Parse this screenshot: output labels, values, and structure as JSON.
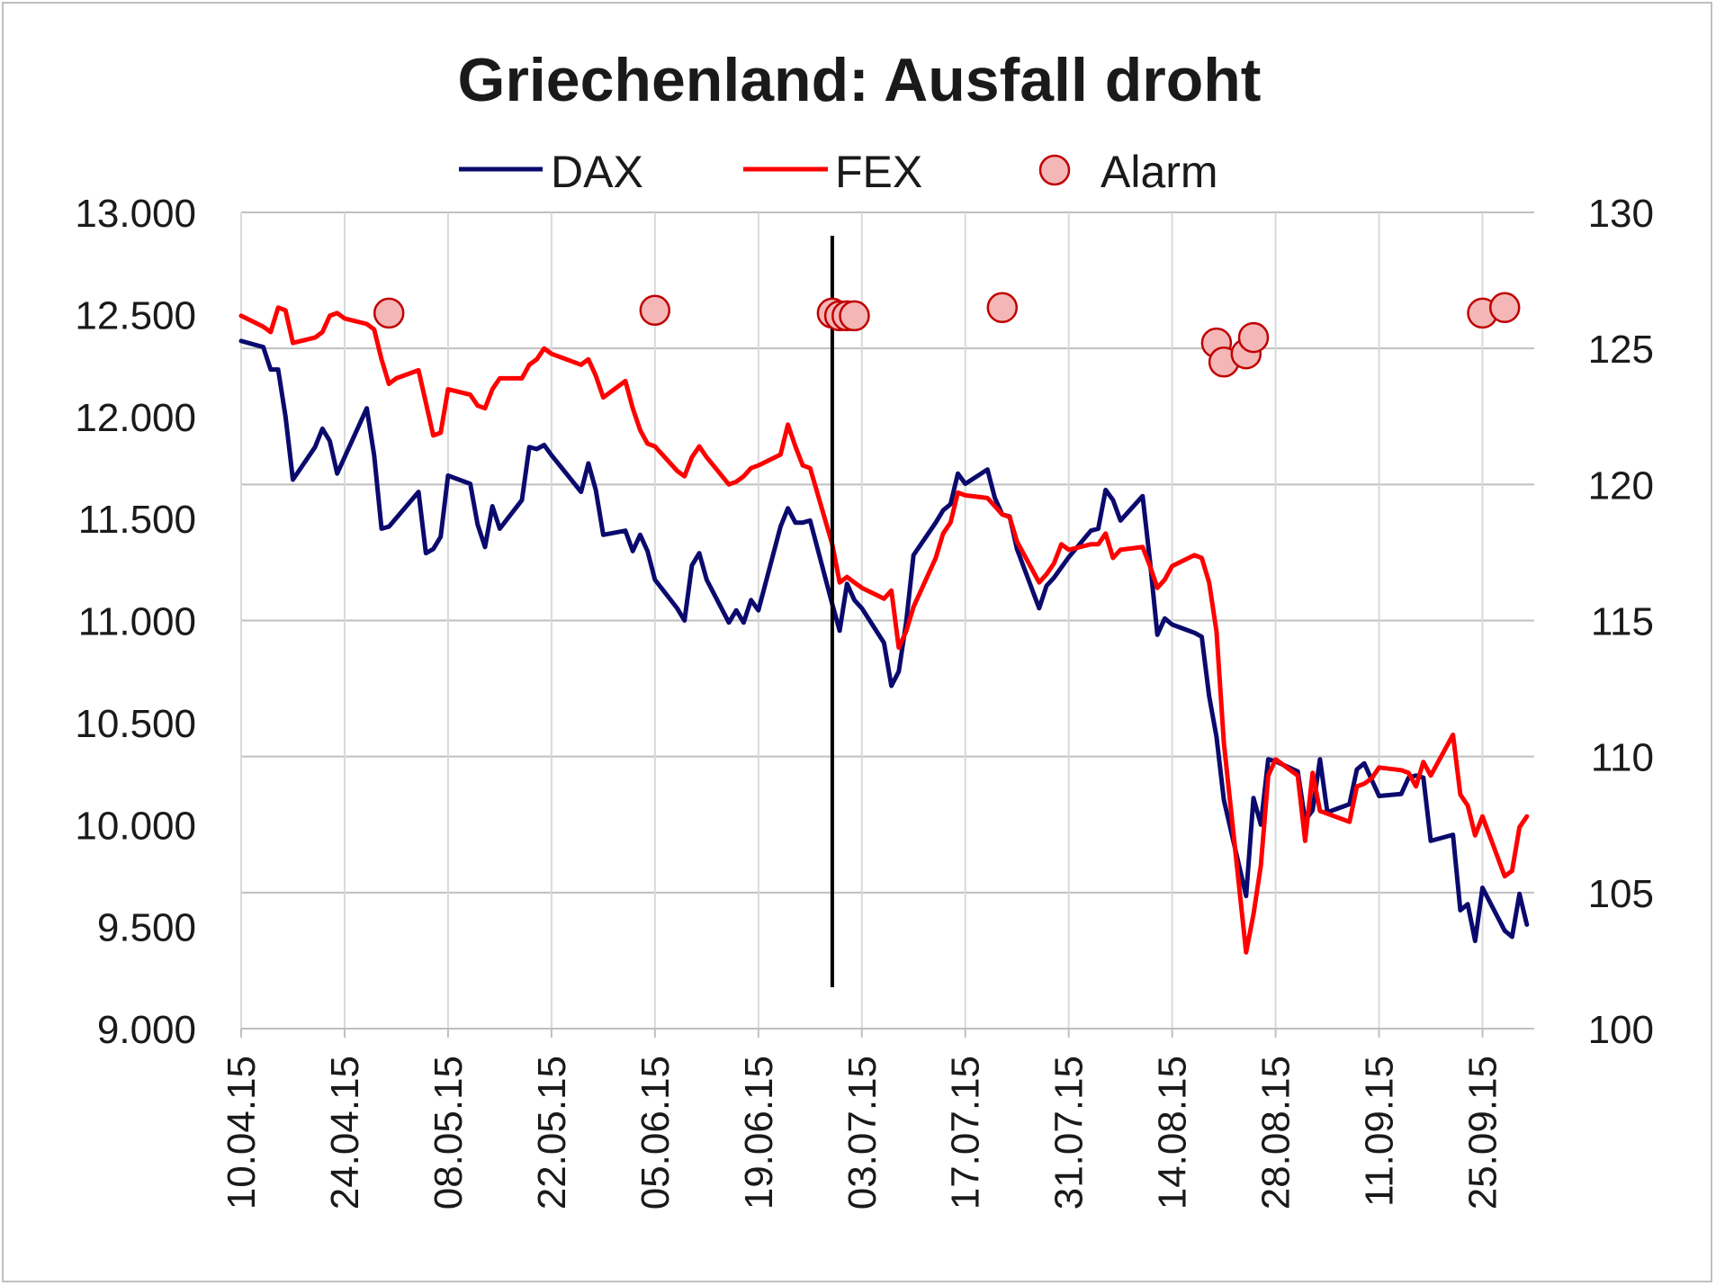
{
  "chart_data": {
    "type": "line",
    "title": "Griechenland: Ausfall droht",
    "legend": {
      "position": "top",
      "entries": [
        {
          "label": "DAX",
          "style": "line",
          "color": "#0a0a6e"
        },
        {
          "label": "FEX",
          "style": "line",
          "color": "#ff0000"
        },
        {
          "label": "Alarm",
          "style": "marker",
          "color": "#f4b6b6"
        }
      ]
    },
    "x_start": "10.04.15",
    "x_end": "02.10.15",
    "x_ticks": [
      "10.04.15",
      "24.04.15",
      "08.05.15",
      "22.05.15",
      "05.06.15",
      "19.06.15",
      "03.07.15",
      "17.07.15",
      "31.07.15",
      "14.08.15",
      "28.08.15",
      "11.09.15",
      "25.09.15"
    ],
    "y_left": {
      "ticks": [
        "13.000",
        "12.500",
        "12.000",
        "11.500",
        "11.000",
        "10.500",
        "10.000",
        "9.500",
        "9.000"
      ],
      "range": [
        9000,
        13000
      ]
    },
    "y_right": {
      "ticks": [
        "130",
        "125",
        "120",
        "115",
        "110",
        "105",
        "100"
      ],
      "range": [
        100,
        130
      ]
    },
    "grid": "horizontal and vertical",
    "vertical_marker_date": "29.06.15",
    "series": [
      {
        "name": "DAX",
        "axis": "left",
        "color": "#0a0a6e",
        "points": [
          [
            "10.04.15",
            12370
          ],
          [
            "13.04.15",
            12340
          ],
          [
            "14.04.15",
            12230
          ],
          [
            "15.04.15",
            12230
          ],
          [
            "16.04.15",
            12000
          ],
          [
            "17.04.15",
            11690
          ],
          [
            "20.04.15",
            11850
          ],
          [
            "21.04.15",
            11940
          ],
          [
            "22.04.15",
            11880
          ],
          [
            "23.04.15",
            11720
          ],
          [
            "27.04.15",
            12040
          ],
          [
            "28.04.15",
            11810
          ],
          [
            "29.04.15",
            11450
          ],
          [
            "30.04.15",
            11460
          ],
          [
            "04.05.15",
            11630
          ],
          [
            "05.05.15",
            11330
          ],
          [
            "06.05.15",
            11350
          ],
          [
            "07.05.15",
            11410
          ],
          [
            "08.05.15",
            11710
          ],
          [
            "11.05.15",
            11670
          ],
          [
            "12.05.15",
            11470
          ],
          [
            "13.05.15",
            11360
          ],
          [
            "14.05.15",
            11560
          ],
          [
            "15.05.15",
            11450
          ],
          [
            "18.05.15",
            11590
          ],
          [
            "19.05.15",
            11850
          ],
          [
            "20.05.15",
            11840
          ],
          [
            "21.05.15",
            11860
          ],
          [
            "22.05.15",
            11810
          ],
          [
            "26.05.15",
            11630
          ],
          [
            "27.05.15",
            11770
          ],
          [
            "28.05.15",
            11640
          ],
          [
            "29.05.15",
            11420
          ],
          [
            "01.06.15",
            11440
          ],
          [
            "02.06.15",
            11340
          ],
          [
            "03.06.15",
            11420
          ],
          [
            "04.06.15",
            11340
          ],
          [
            "05.06.15",
            11200
          ],
          [
            "08.06.15",
            11060
          ],
          [
            "09.06.15",
            11000
          ],
          [
            "10.06.15",
            11270
          ],
          [
            "11.06.15",
            11330
          ],
          [
            "12.06.15",
            11200
          ],
          [
            "15.06.15",
            10990
          ],
          [
            "16.06.15",
            11050
          ],
          [
            "17.06.15",
            10990
          ],
          [
            "18.06.15",
            11100
          ],
          [
            "19.06.15",
            11050
          ],
          [
            "22.06.15",
            11460
          ],
          [
            "23.06.15",
            11550
          ],
          [
            "24.06.15",
            11480
          ],
          [
            "25.06.15",
            11480
          ],
          [
            "26.06.15",
            11490
          ],
          [
            "29.06.15",
            11080
          ],
          [
            "30.06.15",
            10950
          ],
          [
            "01.07.15",
            11180
          ],
          [
            "02.07.15",
            11100
          ],
          [
            "03.07.15",
            11060
          ],
          [
            "06.07.15",
            10890
          ],
          [
            "07.07.15",
            10680
          ],
          [
            "08.07.15",
            10750
          ],
          [
            "09.07.15",
            10990
          ],
          [
            "10.07.15",
            11320
          ],
          [
            "13.07.15",
            11480
          ],
          [
            "14.07.15",
            11540
          ],
          [
            "15.07.15",
            11570
          ],
          [
            "16.07.15",
            11720
          ],
          [
            "17.07.15",
            11670
          ],
          [
            "20.07.15",
            11740
          ],
          [
            "21.07.15",
            11600
          ],
          [
            "22.07.15",
            11520
          ],
          [
            "23.07.15",
            11510
          ],
          [
            "24.07.15",
            11350
          ],
          [
            "27.07.15",
            11060
          ],
          [
            "28.07.15",
            11170
          ],
          [
            "29.07.15",
            11210
          ],
          [
            "30.07.15",
            11260
          ],
          [
            "31.07.15",
            11310
          ],
          [
            "03.08.15",
            11440
          ],
          [
            "04.08.15",
            11450
          ],
          [
            "05.08.15",
            11640
          ],
          [
            "06.08.15",
            11590
          ],
          [
            "07.08.15",
            11490
          ],
          [
            "10.08.15",
            11610
          ],
          [
            "11.08.15",
            11290
          ],
          [
            "12.08.15",
            10930
          ],
          [
            "13.08.15",
            11010
          ],
          [
            "14.08.15",
            10980
          ],
          [
            "17.08.15",
            10940
          ],
          [
            "18.08.15",
            10920
          ],
          [
            "19.08.15",
            10630
          ],
          [
            "20.08.15",
            10430
          ],
          [
            "21.08.15",
            10120
          ],
          [
            "24.08.15",
            9650
          ],
          [
            "25.08.15",
            10130
          ],
          [
            "26.08.15",
            10000
          ],
          [
            "27.08.15",
            10320
          ],
          [
            "28.08.15",
            10310
          ],
          [
            "31.08.15",
            10260
          ],
          [
            "01.09.15",
            10020
          ],
          [
            "02.09.15",
            10070
          ],
          [
            "03.09.15",
            10320
          ],
          [
            "04.09.15",
            10060
          ],
          [
            "07.09.15",
            10100
          ],
          [
            "08.09.15",
            10270
          ],
          [
            "09.09.15",
            10300
          ],
          [
            "10.09.15",
            10220
          ],
          [
            "11.09.15",
            10140
          ],
          [
            "14.09.15",
            10150
          ],
          [
            "15.09.15",
            10230
          ],
          [
            "16.09.15",
            10240
          ],
          [
            "17.09.15",
            10230
          ],
          [
            "18.09.15",
            9920
          ],
          [
            "21.09.15",
            9950
          ],
          [
            "22.09.15",
            9580
          ],
          [
            "23.09.15",
            9610
          ],
          [
            "24.09.15",
            9430
          ],
          [
            "25.09.15",
            9690
          ],
          [
            "28.09.15",
            9480
          ],
          [
            "29.09.15",
            9450
          ],
          [
            "30.09.15",
            9660
          ],
          [
            "01.10.15",
            9510
          ]
        ]
      },
      {
        "name": "FEX",
        "axis": "right",
        "color": "#ff0000",
        "points": [
          [
            "10.04.15",
            126.2
          ],
          [
            "13.04.15",
            125.8
          ],
          [
            "14.04.15",
            125.6
          ],
          [
            "15.04.15",
            126.5
          ],
          [
            "16.04.15",
            126.4
          ],
          [
            "17.04.15",
            125.2
          ],
          [
            "20.04.15",
            125.4
          ],
          [
            "21.04.15",
            125.6
          ],
          [
            "22.04.15",
            126.2
          ],
          [
            "23.04.15",
            126.3
          ],
          [
            "24.04.15",
            126.1
          ],
          [
            "27.04.15",
            125.9
          ],
          [
            "28.04.15",
            125.7
          ],
          [
            "29.04.15",
            124.6
          ],
          [
            "30.04.15",
            123.7
          ],
          [
            "01.05.15",
            123.9
          ],
          [
            "04.05.15",
            124.2
          ],
          [
            "05.05.15",
            123.0
          ],
          [
            "06.05.15",
            121.8
          ],
          [
            "07.05.15",
            121.9
          ],
          [
            "08.05.15",
            123.5
          ],
          [
            "11.05.15",
            123.3
          ],
          [
            "12.05.15",
            122.9
          ],
          [
            "13.05.15",
            122.8
          ],
          [
            "14.05.15",
            123.5
          ],
          [
            "15.05.15",
            123.9
          ],
          [
            "18.05.15",
            123.9
          ],
          [
            "19.05.15",
            124.4
          ],
          [
            "20.05.15",
            124.6
          ],
          [
            "21.05.15",
            125.0
          ],
          [
            "22.05.15",
            124.8
          ],
          [
            "26.05.15",
            124.4
          ],
          [
            "27.05.15",
            124.6
          ],
          [
            "28.05.15",
            124.0
          ],
          [
            "29.05.15",
            123.2
          ],
          [
            "01.06.15",
            123.8
          ],
          [
            "02.06.15",
            122.8
          ],
          [
            "03.06.15",
            122.0
          ],
          [
            "04.06.15",
            121.5
          ],
          [
            "05.06.15",
            121.4
          ],
          [
            "08.06.15",
            120.5
          ],
          [
            "09.06.15",
            120.3
          ],
          [
            "10.06.15",
            121.0
          ],
          [
            "11.06.15",
            121.4
          ],
          [
            "12.06.15",
            121.0
          ],
          [
            "15.06.15",
            120.0
          ],
          [
            "16.06.15",
            120.1
          ],
          [
            "17.06.15",
            120.3
          ],
          [
            "18.06.15",
            120.6
          ],
          [
            "19.06.15",
            120.7
          ],
          [
            "22.06.15",
            121.1
          ],
          [
            "23.06.15",
            122.2
          ],
          [
            "24.06.15",
            121.4
          ],
          [
            "25.06.15",
            120.7
          ],
          [
            "26.06.15",
            120.6
          ],
          [
            "29.06.15",
            117.8
          ],
          [
            "30.06.15",
            116.4
          ],
          [
            "01.07.15",
            116.6
          ],
          [
            "02.07.15",
            116.4
          ],
          [
            "03.07.15",
            116.2
          ],
          [
            "06.07.15",
            115.8
          ],
          [
            "07.07.15",
            116.1
          ],
          [
            "08.07.15",
            114.0
          ],
          [
            "09.07.15",
            114.6
          ],
          [
            "10.07.15",
            115.5
          ],
          [
            "13.07.15",
            117.3
          ],
          [
            "14.07.15",
            118.2
          ],
          [
            "15.07.15",
            118.6
          ],
          [
            "16.07.15",
            119.7
          ],
          [
            "17.07.15",
            119.6
          ],
          [
            "20.07.15",
            119.5
          ],
          [
            "21.07.15",
            119.2
          ],
          [
            "22.07.15",
            118.9
          ],
          [
            "23.07.15",
            118.8
          ],
          [
            "24.07.15",
            117.9
          ],
          [
            "27.07.15",
            116.4
          ],
          [
            "28.07.15",
            116.7
          ],
          [
            "29.07.15",
            117.1
          ],
          [
            "30.07.15",
            117.8
          ],
          [
            "31.07.15",
            117.6
          ],
          [
            "03.08.15",
            117.8
          ],
          [
            "04.08.15",
            117.8
          ],
          [
            "05.08.15",
            118.2
          ],
          [
            "06.08.15",
            117.3
          ],
          [
            "07.08.15",
            117.6
          ],
          [
            "10.08.15",
            117.7
          ],
          [
            "11.08.15",
            117.0
          ],
          [
            "12.08.15",
            116.2
          ],
          [
            "13.08.15",
            116.5
          ],
          [
            "14.08.15",
            117.0
          ],
          [
            "17.08.15",
            117.4
          ],
          [
            "18.08.15",
            117.3
          ],
          [
            "19.08.15",
            116.4
          ],
          [
            "20.08.15",
            114.6
          ],
          [
            "21.08.15",
            110.5
          ],
          [
            "24.08.15",
            102.8
          ],
          [
            "25.08.15",
            104.2
          ],
          [
            "26.08.15",
            106.0
          ],
          [
            "27.08.15",
            109.3
          ],
          [
            "28.08.15",
            109.9
          ],
          [
            "31.08.15",
            109.3
          ],
          [
            "01.09.15",
            106.9
          ],
          [
            "02.09.15",
            109.4
          ],
          [
            "03.09.15",
            108.0
          ],
          [
            "04.09.15",
            107.9
          ],
          [
            "07.09.15",
            107.6
          ],
          [
            "08.09.15",
            108.9
          ],
          [
            "09.09.15",
            109.0
          ],
          [
            "10.09.15",
            109.2
          ],
          [
            "11.09.15",
            109.6
          ],
          [
            "14.09.15",
            109.5
          ],
          [
            "15.09.15",
            109.4
          ],
          [
            "16.09.15",
            108.9
          ],
          [
            "17.09.15",
            109.8
          ],
          [
            "18.09.15",
            109.3
          ],
          [
            "21.09.15",
            110.8
          ],
          [
            "22.09.15",
            108.6
          ],
          [
            "23.09.15",
            108.2
          ],
          [
            "24.09.15",
            107.1
          ],
          [
            "25.09.15",
            107.8
          ],
          [
            "28.09.15",
            105.6
          ],
          [
            "29.09.15",
            105.8
          ],
          [
            "30.09.15",
            107.4
          ],
          [
            "01.10.15",
            107.8
          ]
        ]
      }
    ],
    "markers": {
      "name": "Alarm",
      "axis": "right",
      "points": [
        [
          "30.04.15",
          126.3
        ],
        [
          "05.06.15",
          126.4
        ],
        [
          "29.06.15",
          126.3
        ],
        [
          "30.06.15",
          126.2
        ],
        [
          "01.07.15",
          126.2
        ],
        [
          "02.07.15",
          126.2
        ],
        [
          "22.07.15",
          126.5
        ],
        [
          "20.08.15",
          125.2
        ],
        [
          "21.08.15",
          124.5
        ],
        [
          "24.08.15",
          124.8
        ],
        [
          "25.08.15",
          125.4
        ],
        [
          "25.09.15",
          126.3
        ],
        [
          "28.09.15",
          126.5
        ]
      ]
    }
  }
}
